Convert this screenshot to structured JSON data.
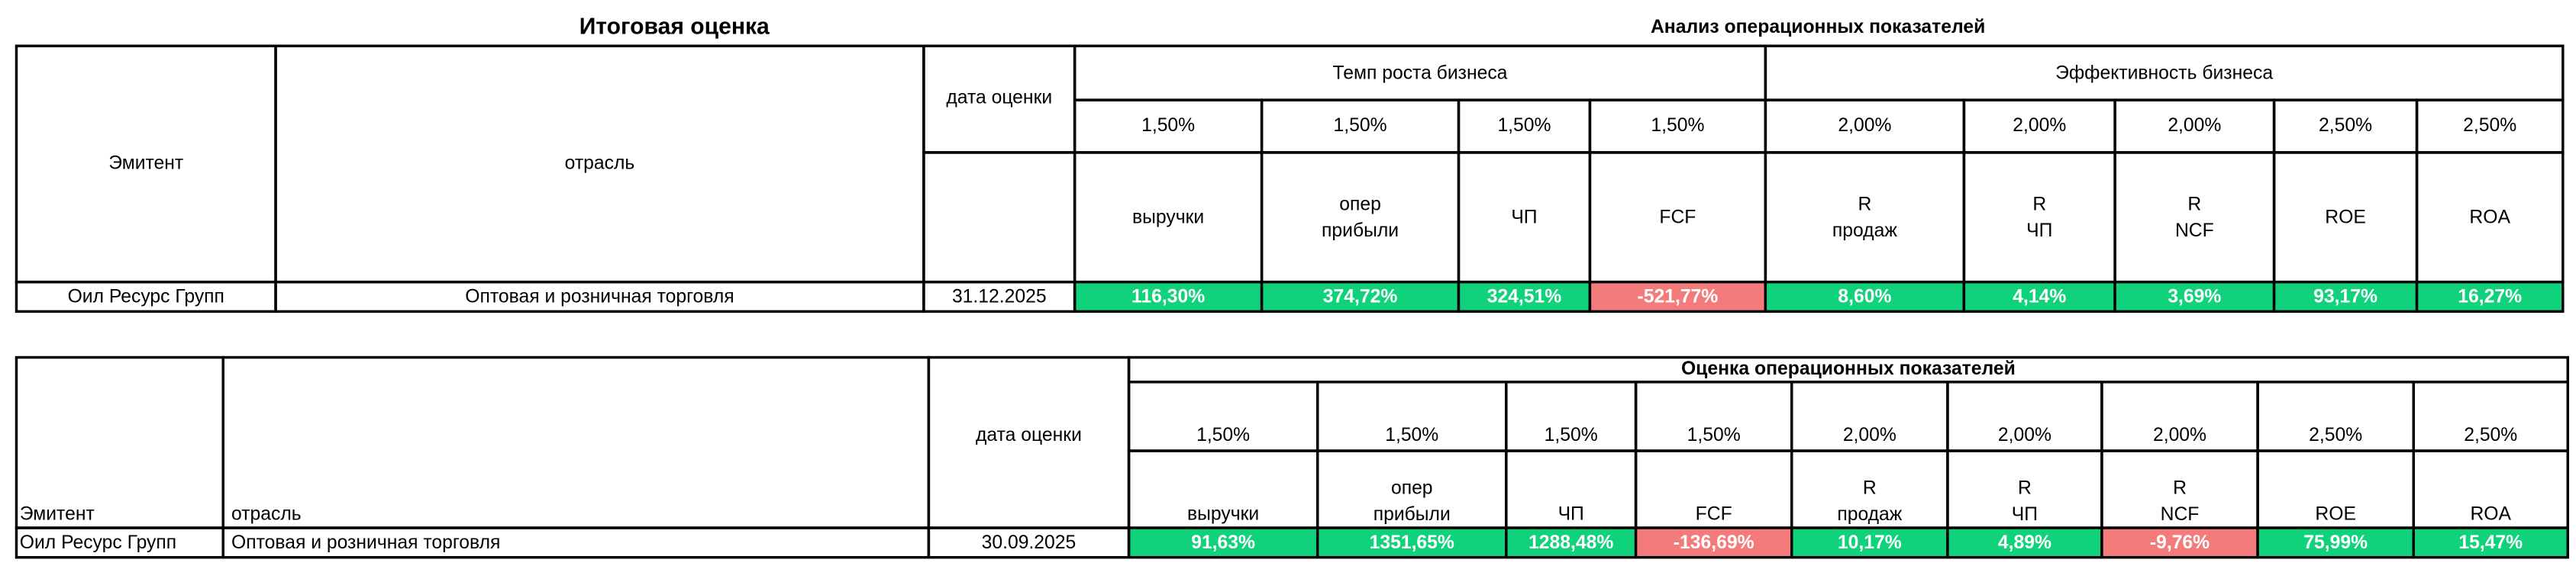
{
  "table1": {
    "title": "Итоговая оценка",
    "subtitle": "Анализ операционных показателей",
    "headers": {
      "issuer": "Эмитент",
      "industry": "отрасль",
      "date": "дата оценки",
      "group1": "Темп роста бизнеса",
      "group2": "Эффективность бизнеса"
    },
    "weights": [
      "1,50%",
      "1,50%",
      "1,50%",
      "1,50%",
      "2,00%",
      "2,00%",
      "2,00%",
      "2,50%",
      "2,50%"
    ],
    "metrics": [
      "выручки",
      "опер прибыли",
      "ЧП",
      "FCF",
      "R продаж",
      "R ЧП",
      "R NCF",
      "ROE",
      "ROA"
    ],
    "row": {
      "issuer": "Оил Ресурс Групп",
      "industry": "Оптовая и розничная торговля",
      "date": "31.12.2025",
      "values": [
        "116,30%",
        "374,72%",
        "324,51%",
        "-521,77%",
        "8,60%",
        "4,14%",
        "3,69%",
        "93,17%",
        "16,27%"
      ],
      "colors": [
        "#0fd27a",
        "#0fd27a",
        "#0fd27a",
        "#f47b7b",
        "#0fd27a",
        "#0fd27a",
        "#0fd27a",
        "#0fd27a",
        "#0fd27a"
      ]
    }
  },
  "table2": {
    "title": "Оценка операционных показателей",
    "headers": {
      "issuer": "Эмитент",
      "industry": "отрасль",
      "date": "дата оценки"
    },
    "weights": [
      "1,50%",
      "1,50%",
      "1,50%",
      "1,50%",
      "2,00%",
      "2,00%",
      "2,00%",
      "2,50%",
      "2,50%"
    ],
    "metrics": [
      "выручки",
      "опер прибыли",
      "ЧП",
      "FCF",
      "R продаж",
      "R ЧП",
      "R NCF",
      "ROE",
      "ROA"
    ],
    "row": {
      "issuer": "Оил Ресурс Групп",
      "industry": "Оптовая и розничная торговля",
      "date": "30.09.2025",
      "values": [
        "91,63%",
        "1351,65%",
        "1288,48%",
        "-136,69%",
        "10,17%",
        "4,89%",
        "-9,76%",
        "75,99%",
        "15,47%"
      ],
      "colors": [
        "#0fd27a",
        "#0fd27a",
        "#0fd27a",
        "#f47b7b",
        "#0fd27a",
        "#0fd27a",
        "#f47b7b",
        "#0fd27a",
        "#0fd27a"
      ]
    }
  }
}
